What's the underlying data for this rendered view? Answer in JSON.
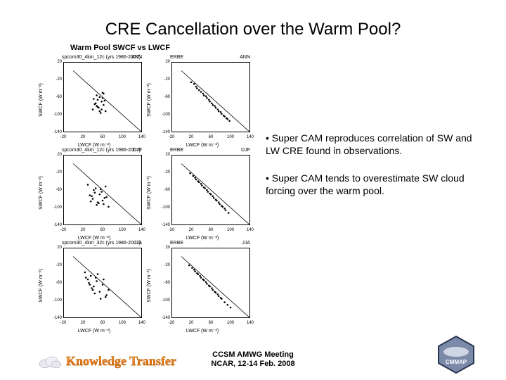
{
  "title": "CRE Cancellation over the Warm Pool?",
  "subhead": "Warm Pool SWCF vs LWCF",
  "panels": [
    {
      "left_label": "spcom30_4km_12c (yrs 1986-2007)",
      "right_label": "ERBE",
      "season_l": "ANN",
      "season_r": "ANN",
      "pts_l": [
        [
          40,
          -88
        ],
        [
          44,
          -76
        ],
        [
          50,
          -82
        ],
        [
          54,
          -60
        ],
        [
          58,
          -70
        ],
        [
          62,
          -78
        ],
        [
          66,
          -92
        ],
        [
          42,
          -64
        ],
        [
          48,
          -56
        ],
        [
          52,
          -84
        ],
        [
          56,
          -96
        ],
        [
          60,
          -50
        ],
        [
          64,
          -68
        ],
        [
          46,
          -74
        ],
        [
          58,
          -88
        ],
        [
          62,
          -52
        ],
        [
          50,
          -66
        ],
        [
          54,
          -92
        ],
        [
          48,
          -80
        ],
        [
          60,
          -62
        ]
      ],
      "pts_r": [
        [
          20,
          -26
        ],
        [
          26,
          -30
        ],
        [
          32,
          -40
        ],
        [
          40,
          -48
        ],
        [
          46,
          -56
        ],
        [
          52,
          -62
        ],
        [
          58,
          -70
        ],
        [
          64,
          -78
        ],
        [
          70,
          -84
        ],
        [
          76,
          -92
        ],
        [
          82,
          -98
        ],
        [
          88,
          -104
        ],
        [
          94,
          -110
        ],
        [
          30,
          -36
        ],
        [
          36,
          -44
        ],
        [
          44,
          -52
        ],
        [
          50,
          -58
        ],
        [
          56,
          -66
        ],
        [
          62,
          -74
        ],
        [
          68,
          -80
        ],
        [
          74,
          -88
        ],
        [
          80,
          -94
        ],
        [
          86,
          -102
        ],
        [
          92,
          -108
        ],
        [
          98,
          -114
        ]
      ]
    },
    {
      "left_label": "spcom30_4km_12c (yrs 1986-2007)",
      "right_label": "ERBE",
      "season_l": "DJF",
      "season_r": "DJF",
      "pts_l": [
        [
          34,
          -72
        ],
        [
          40,
          -80
        ],
        [
          46,
          -56
        ],
        [
          52,
          -90
        ],
        [
          58,
          -64
        ],
        [
          64,
          -78
        ],
        [
          30,
          -48
        ],
        [
          36,
          -86
        ],
        [
          42,
          -60
        ],
        [
          48,
          -94
        ],
        [
          54,
          -70
        ],
        [
          60,
          -84
        ],
        [
          66,
          -52
        ],
        [
          72,
          -98
        ],
        [
          38,
          -74
        ],
        [
          44,
          -66
        ],
        [
          50,
          -88
        ],
        [
          56,
          -58
        ],
        [
          62,
          -92
        ],
        [
          68,
          -76
        ]
      ],
      "pts_r": [
        [
          18,
          -22
        ],
        [
          24,
          -28
        ],
        [
          30,
          -36
        ],
        [
          36,
          -42
        ],
        [
          42,
          -50
        ],
        [
          48,
          -56
        ],
        [
          54,
          -64
        ],
        [
          60,
          -70
        ],
        [
          66,
          -78
        ],
        [
          72,
          -84
        ],
        [
          78,
          -92
        ],
        [
          84,
          -98
        ],
        [
          90,
          -106
        ],
        [
          96,
          -112
        ],
        [
          28,
          -32
        ],
        [
          34,
          -40
        ],
        [
          40,
          -46
        ],
        [
          46,
          -54
        ],
        [
          52,
          -60
        ],
        [
          58,
          -68
        ],
        [
          64,
          -74
        ],
        [
          70,
          -82
        ],
        [
          76,
          -88
        ],
        [
          82,
          -96
        ],
        [
          88,
          -102
        ]
      ]
    },
    {
      "left_label": "spcom30_4km_32c (yrs 1986-2007)",
      "right_label": "ERBE",
      "season_l": "JJA",
      "season_r": "JJA",
      "pts_l": [
        [
          24,
          -36
        ],
        [
          30,
          -52
        ],
        [
          36,
          -44
        ],
        [
          42,
          -68
        ],
        [
          48,
          -56
        ],
        [
          54,
          -80
        ],
        [
          60,
          -64
        ],
        [
          66,
          -92
        ],
        [
          72,
          -76
        ],
        [
          26,
          -48
        ],
        [
          32,
          -60
        ],
        [
          38,
          -72
        ],
        [
          44,
          -84
        ],
        [
          50,
          -40
        ],
        [
          56,
          -96
        ],
        [
          62,
          -52
        ],
        [
          68,
          -88
        ],
        [
          34,
          -64
        ],
        [
          40,
          -76
        ],
        [
          46,
          -48
        ]
      ],
      "pts_r": [
        [
          16,
          -20
        ],
        [
          22,
          -26
        ],
        [
          28,
          -34
        ],
        [
          34,
          -40
        ],
        [
          40,
          -48
        ],
        [
          46,
          -54
        ],
        [
          52,
          -62
        ],
        [
          58,
          -68
        ],
        [
          64,
          -76
        ],
        [
          70,
          -82
        ],
        [
          76,
          -90
        ],
        [
          82,
          -96
        ],
        [
          88,
          -104
        ],
        [
          94,
          -110
        ],
        [
          100,
          -116
        ],
        [
          26,
          -30
        ],
        [
          32,
          -38
        ],
        [
          38,
          -44
        ],
        [
          44,
          -52
        ],
        [
          50,
          -58
        ],
        [
          56,
          -66
        ],
        [
          62,
          -72
        ],
        [
          68,
          -80
        ],
        [
          74,
          -86
        ],
        [
          80,
          -94
        ]
      ]
    }
  ],
  "axis": {
    "xlabel": "LWCF (W m⁻²)",
    "ylabel": "SWCF (W m⁻²)",
    "xlim": [
      -20,
      140
    ],
    "xticks": [
      -20,
      20,
      60,
      100,
      140
    ],
    "ylim": [
      -140,
      20
    ],
    "yticks": [
      -140,
      -100,
      -60,
      -20,
      20
    ],
    "tick_fontsize": 6,
    "label_fontsize": 7,
    "line_color": "#000000",
    "marker": "dot",
    "marker_size": 1.3,
    "marker_color": "#000000",
    "background": "#ffffff"
  },
  "bullets": [
    "• Super CAM reproduces correlation of SW and LW CRE found in observations.",
    "• Super CAM tends to overestimate SW cloud forcing over the warm pool."
  ],
  "footer": {
    "line1": "CCSM AMWG Meeting",
    "line2": "NCAR, 12-14 Feb. 2008"
  },
  "logos": {
    "kt_text": "Knowledge Transfer",
    "cmmap_label": "CMMAP"
  },
  "colors": {
    "bg": "#ffffff",
    "text": "#000000",
    "kt_gradient_top": "#ffb347",
    "kt_gradient_bottom": "#cc6600",
    "cmmap_fill": "#7a8aa8",
    "cmmap_border": "#2a3550"
  }
}
